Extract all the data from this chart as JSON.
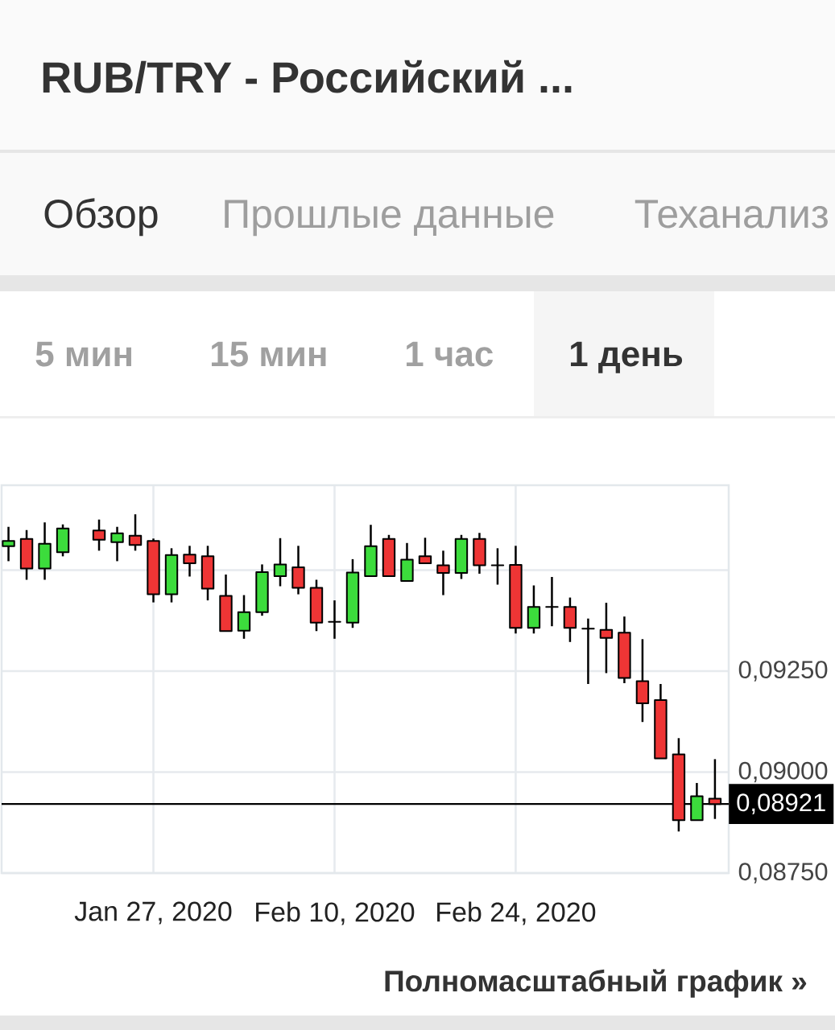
{
  "chart_data": {
    "type": "candlestick",
    "title": "RUB/TRY - Российский ...",
    "categories": [
      null,
      null,
      null,
      null,
      null,
      null,
      null,
      null,
      "Jan 27, 2020",
      null,
      null,
      null,
      null,
      null,
      null,
      null,
      null,
      null,
      "Feb 10, 2020",
      null,
      null,
      null,
      null,
      null,
      null,
      null,
      null,
      null,
      "Feb 24, 2020",
      null,
      null,
      null,
      null,
      null,
      null,
      null,
      null,
      null,
      null,
      null
    ],
    "ohlc": [
      [
        0.09559,
        0.09607,
        0.09522,
        0.09572
      ],
      [
        0.09577,
        0.09599,
        0.09476,
        0.09504
      ],
      [
        0.09504,
        0.09618,
        0.09476,
        0.09565
      ],
      [
        0.09544,
        0.09613,
        0.09534,
        0.09603
      ],
      null,
      [
        0.09598,
        0.09625,
        0.09548,
        0.09575
      ],
      [
        0.09569,
        0.09607,
        0.09522,
        0.09591
      ],
      [
        0.09585,
        0.09638,
        0.09548,
        0.09562
      ],
      [
        0.09572,
        0.09578,
        0.0942,
        0.0944
      ],
      [
        0.0944,
        0.09554,
        0.0942,
        0.09537
      ],
      [
        0.09538,
        0.0956,
        0.09484,
        0.09517
      ],
      [
        0.09534,
        0.0956,
        0.09425,
        0.09454
      ],
      [
        0.09436,
        0.09489,
        0.09349,
        0.09349
      ],
      [
        0.0935,
        0.09438,
        0.0933,
        0.09396
      ],
      [
        0.09396,
        0.09514,
        0.09387,
        0.09495
      ],
      [
        0.09485,
        0.09579,
        0.0946,
        0.09514
      ],
      [
        0.09507,
        0.0956,
        0.0944,
        0.09456
      ],
      [
        0.09456,
        0.09476,
        0.09349,
        0.0937
      ],
      [
        0.09372,
        0.09425,
        0.0933,
        0.09372
      ],
      [
        0.0937,
        0.09527,
        0.09357,
        0.09494
      ],
      [
        0.09485,
        0.09612,
        0.09485,
        0.09559
      ],
      [
        0.09577,
        0.09587,
        0.09485,
        0.09485
      ],
      [
        0.09473,
        0.09567,
        0.09473,
        0.09526
      ],
      [
        0.09534,
        0.0958,
        0.09517,
        0.09517
      ],
      [
        0.09512,
        0.09548,
        0.09438,
        0.09493
      ],
      [
        0.09493,
        0.09587,
        0.09478,
        0.09577
      ],
      [
        0.09577,
        0.09592,
        0.09491,
        0.09512
      ],
      [
        0.09512,
        0.09554,
        0.09464,
        0.09512
      ],
      [
        0.09513,
        0.0956,
        0.09343,
        0.09357
      ],
      [
        0.09357,
        0.09462,
        0.09343,
        0.09409
      ],
      [
        0.09409,
        0.09483,
        0.09361,
        0.09409
      ],
      [
        0.09409,
        0.09432,
        0.09322,
        0.09357
      ],
      [
        0.09355,
        0.0938,
        0.09218,
        0.09355
      ],
      [
        0.09352,
        0.09419,
        0.09245,
        0.09332
      ],
      [
        0.09345,
        0.09385,
        0.0922,
        0.09233
      ],
      [
        0.09225,
        0.09329,
        0.09124,
        0.0917
      ],
      [
        0.09178,
        0.09218,
        0.09034,
        0.09034
      ],
      [
        0.09044,
        0.09084,
        0.08853,
        0.08881
      ],
      [
        0.08881,
        0.08973,
        0.08881,
        0.0894
      ],
      [
        0.08934,
        0.09032,
        0.08884,
        0.08921
      ]
    ],
    "colors": [
      "#3cdc3c",
      "#ee3535",
      "#3cdc3c",
      "#3cdc3c",
      null,
      "#ee3535",
      "#3cdc3c",
      "#ee3535",
      "#ee3535",
      "#3cdc3c",
      "#ee3535",
      "#ee3535",
      "#ee3535",
      "#3cdc3c",
      "#3cdc3c",
      "#3cdc3c",
      "#ee3535",
      "#ee3535",
      "#000000",
      "#3cdc3c",
      "#3cdc3c",
      "#ee3535",
      "#3cdc3c",
      "#ee3535",
      "#ee3535",
      "#3cdc3c",
      "#ee3535",
      "#000000",
      "#ee3535",
      "#3cdc3c",
      "#000000",
      "#ee3535",
      "#000000",
      "#ee3535",
      "#ee3535",
      "#ee3535",
      "#ee3535",
      "#ee3535",
      "#3cdc3c",
      "#ee3535"
    ],
    "ylim": [
      0.0875,
      0.0971
    ],
    "yticks": [
      {
        "value": 0.0875,
        "label": "0,08750"
      },
      {
        "value": 0.09,
        "label": "0,09000"
      },
      {
        "value": 0.0925,
        "label": "0,09250"
      },
      {
        "value": 0.095,
        "label": null
      }
    ],
    "grid": true,
    "ref_lines": [
      {
        "axis": "y",
        "value": 0.08921,
        "label": "0,08921",
        "color": "#000000"
      }
    ],
    "annotations": [
      "Обзор",
      "Прошлые данные",
      "Теханализ",
      "5 мин",
      "15 мин",
      "1 час",
      "1 день",
      "Полномасштабный график »"
    ]
  }
}
